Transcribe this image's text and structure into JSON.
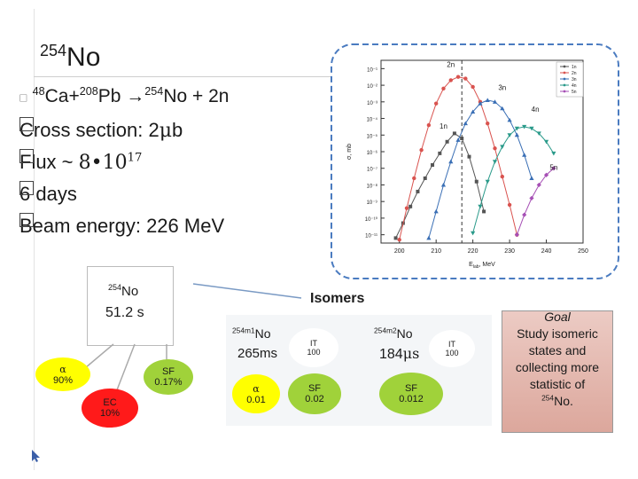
{
  "title": {
    "mass": "254",
    "element": "No"
  },
  "reaction": {
    "m1": "48",
    "a": "Ca+",
    "m2": "208",
    "b": "Pb",
    "arrow": "→",
    "m3": "254",
    "c": "No + 2n"
  },
  "bullets": [
    "Cross section: 2",
    "b",
    "Flux ~ ",
    "8•10",
    "17",
    "6 days",
    "Beam energy: 226 MeV"
  ],
  "mu": "μ",
  "parent": {
    "mass": "254",
    "el": "No",
    "halflife": "51.2 s"
  },
  "decays": {
    "alpha": "α",
    "alpha_pct": "90%",
    "sf": "SF",
    "sf_pct": "0.17%",
    "ec": "EC",
    "ec_pct": "10%"
  },
  "isomers_title": "Isomers",
  "m1": {
    "mass": "254m1",
    "el": "No",
    "halflife": "265ms",
    "it": "IT",
    "it_pct": "100",
    "alpha": "α",
    "alpha_pct": "0.01",
    "sf": "SF",
    "sf_pct": "0.02"
  },
  "m2": {
    "mass": "254m2",
    "el": "No",
    "halflife_a": "184",
    "halflife_u": "μs",
    "it": "IT",
    "it_pct": "100",
    "sf": "SF",
    "sf_pct": "0.012"
  },
  "goal": {
    "title": "Goal",
    "text": "Study isomeric states and collecting more statistic of",
    "mass": "254",
    "el": "No."
  },
  "chart_data": {
    "type": "line",
    "xlabel": "E",
    "xlabel_sub": "lab",
    "xlabel_unit": ", MeV",
    "ylabel": "σ, mb",
    "x_ticks": [
      "200",
      "210",
      "220",
      "230",
      "240",
      "250"
    ],
    "y_ticks": [
      "10⁻¹",
      "10⁻²",
      "10⁻³",
      "10⁻⁴",
      "10⁻⁵",
      "10⁻⁶",
      "10⁻⁷",
      "10⁻⁸",
      "10⁻⁹",
      "10⁻¹⁰",
      "10⁻¹¹"
    ],
    "xlim": [
      195,
      250
    ],
    "ylim_exp": [
      -11.5,
      -0.5
    ],
    "vline_x": 217,
    "legend": [
      "1n",
      "2n",
      "3n",
      "4n",
      "5n"
    ],
    "annotations": [
      "2n",
      "3n",
      "1n",
      "4n",
      "5n"
    ],
    "series": [
      {
        "name": "1n",
        "color": "#555555",
        "marker": "square",
        "x": [
          199,
          201,
          203,
          205,
          207,
          209,
          211,
          213,
          215,
          217,
          219,
          221,
          223
        ],
        "y": [
          -11.2,
          -10.3,
          -9.3,
          -8.4,
          -7.6,
          -6.8,
          -6.1,
          -5.4,
          -4.9,
          -5.2,
          -6.3,
          -7.8,
          -9.6
        ]
      },
      {
        "name": "2n",
        "color": "#d9534f",
        "marker": "circle",
        "x": [
          200,
          202,
          204,
          206,
          208,
          210,
          212,
          214,
          216,
          218,
          220,
          222,
          224,
          226,
          228,
          230,
          232
        ],
        "y": [
          -11.3,
          -9.4,
          -7.6,
          -5.9,
          -4.4,
          -3.1,
          -2.2,
          -1.7,
          -1.5,
          -1.6,
          -2.1,
          -3.0,
          -4.3,
          -5.8,
          -7.5,
          -9.2,
          -11.0
        ]
      },
      {
        "name": "3n",
        "color": "#3a6fb5",
        "marker": "triangle",
        "x": [
          208,
          210,
          212,
          214,
          216,
          218,
          220,
          222,
          224,
          226,
          228,
          230,
          232,
          234,
          236
        ],
        "y": [
          -11.2,
          -9.6,
          -8.0,
          -6.6,
          -5.3,
          -4.3,
          -3.6,
          -3.1,
          -2.9,
          -3.0,
          -3.4,
          -4.1,
          -5.0,
          -6.2,
          -7.6
        ]
      },
      {
        "name": "4n",
        "color": "#2a9a8a",
        "marker": "triangle-down",
        "x": [
          220,
          222,
          224,
          226,
          228,
          230,
          232,
          234,
          236,
          238,
          240,
          242
        ],
        "y": [
          -10.9,
          -9.3,
          -7.8,
          -6.6,
          -5.7,
          -5.0,
          -4.6,
          -4.5,
          -4.6,
          -4.9,
          -5.4,
          -6.1
        ]
      },
      {
        "name": "5n",
        "color": "#a64fb5",
        "marker": "diamond",
        "x": [
          232,
          234,
          236,
          238,
          240,
          242
        ],
        "y": [
          -11.0,
          -9.8,
          -8.8,
          -8.0,
          -7.4,
          -7.0
        ]
      }
    ]
  }
}
